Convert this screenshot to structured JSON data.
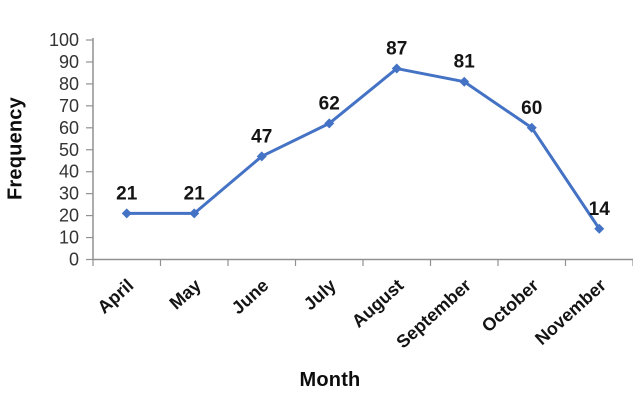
{
  "chart_data": {
    "type": "line",
    "categories": [
      "April",
      "May",
      "June",
      "July",
      "August",
      "September",
      "October",
      "November"
    ],
    "series": [
      {
        "name": "Frequency",
        "values": [
          21,
          21,
          47,
          62,
          87,
          81,
          60,
          14
        ]
      }
    ],
    "data_labels": [
      "21",
      "21",
      "47",
      "62",
      "87",
      "81",
      "60",
      "14"
    ],
    "xlabel": "Month",
    "ylabel": "Frequency",
    "ylim": [
      0,
      100
    ],
    "yticks": [
      0,
      10,
      20,
      30,
      40,
      50,
      60,
      70,
      80,
      90,
      100
    ],
    "grid": false,
    "legend": "none",
    "marker": "diamond",
    "colors": {
      "line": "#4472C4",
      "marker": "#4472C4",
      "axis": "#919191",
      "tick_labels": "#333333",
      "data_labels": "#141414",
      "background": "#ffffff"
    }
  }
}
